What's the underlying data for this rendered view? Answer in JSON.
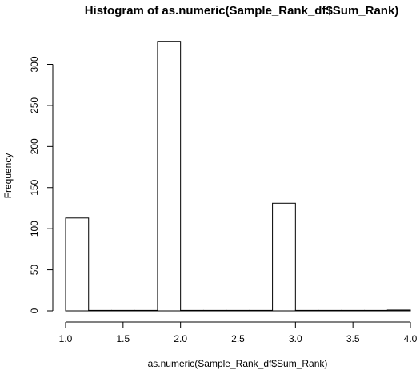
{
  "chart_data": {
    "type": "bar",
    "subtype": "histogram",
    "title": "Histogram of as.numeric(Sample_Rank_df$Sum_Rank)",
    "xlabel": "as.numeric(Sample_Rank_df$Sum_Rank)",
    "ylabel": "Frequency",
    "xlim": [
      1.0,
      4.0
    ],
    "ylim": [
      0,
      330
    ],
    "x_ticks": [
      "1.0",
      "1.5",
      "2.0",
      "2.5",
      "3.0",
      "3.5",
      "4.0"
    ],
    "y_ticks": [
      "0",
      "50",
      "100",
      "150",
      "200",
      "250",
      "300"
    ],
    "bins": [
      {
        "start": 1.0,
        "end": 1.2,
        "value": 113
      },
      {
        "start": 1.2,
        "end": 1.4,
        "value": 0
      },
      {
        "start": 1.4,
        "end": 1.6,
        "value": 0
      },
      {
        "start": 1.6,
        "end": 1.8,
        "value": 0
      },
      {
        "start": 1.8,
        "end": 2.0,
        "value": 328
      },
      {
        "start": 2.0,
        "end": 2.2,
        "value": 0
      },
      {
        "start": 2.2,
        "end": 2.4,
        "value": 0
      },
      {
        "start": 2.4,
        "end": 2.6,
        "value": 0
      },
      {
        "start": 2.6,
        "end": 2.8,
        "value": 0
      },
      {
        "start": 2.8,
        "end": 3.0,
        "value": 131
      },
      {
        "start": 3.0,
        "end": 3.2,
        "value": 0
      },
      {
        "start": 3.2,
        "end": 3.4,
        "value": 0
      },
      {
        "start": 3.4,
        "end": 3.6,
        "value": 0
      },
      {
        "start": 3.6,
        "end": 3.8,
        "value": 0
      },
      {
        "start": 3.8,
        "end": 4.0,
        "value": 1
      }
    ],
    "bar_fill": "#ffffff",
    "bar_stroke": "#000000",
    "grid": false,
    "legend": "none"
  }
}
